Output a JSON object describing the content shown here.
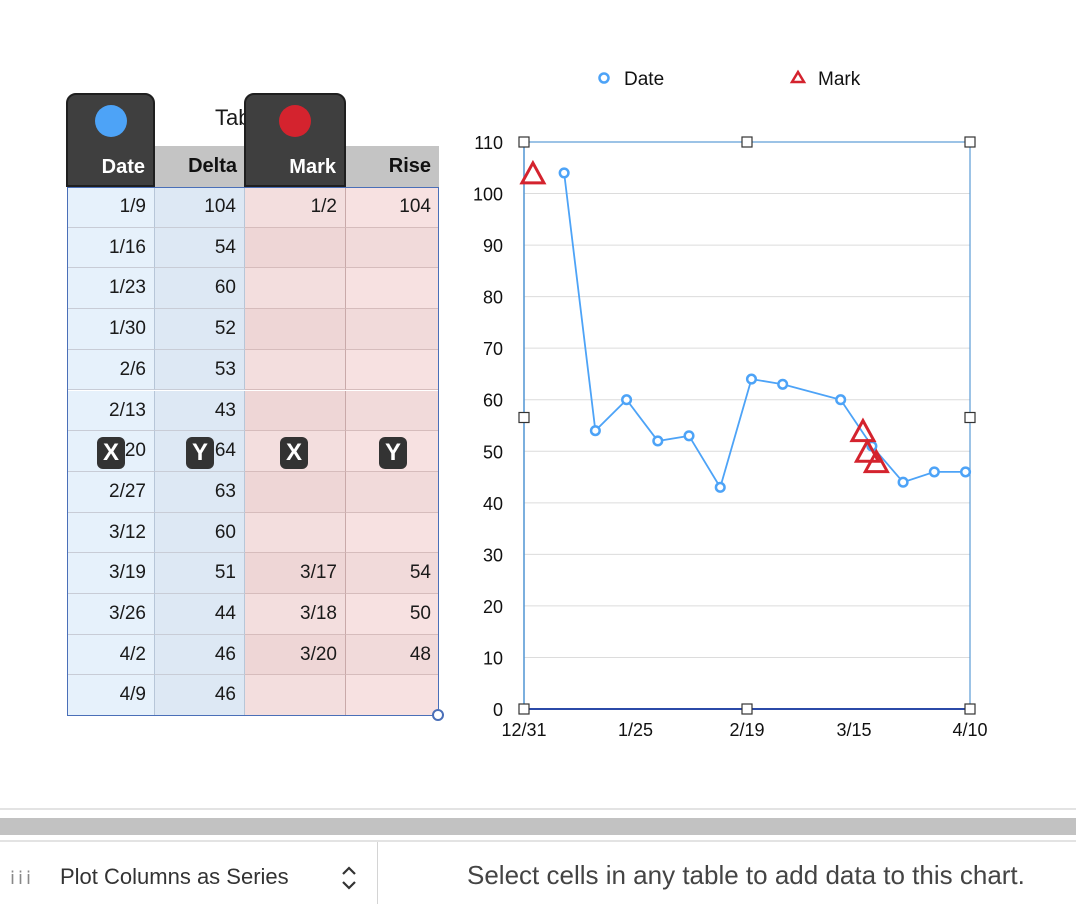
{
  "table": {
    "title": "Table",
    "headers": [
      "Date",
      "Delta",
      "Mark",
      "Rise"
    ],
    "rows": [
      [
        "1/9",
        "104",
        "1/2",
        "104"
      ],
      [
        "1/16",
        "54",
        "",
        ""
      ],
      [
        "1/23",
        "60",
        "",
        ""
      ],
      [
        "1/30",
        "52",
        "",
        ""
      ],
      [
        "2/6",
        "53",
        "",
        ""
      ],
      [
        "2/13",
        "43",
        "",
        ""
      ],
      [
        "2/20",
        "64",
        "",
        ""
      ],
      [
        "2/27",
        "63",
        "",
        ""
      ],
      [
        "3/12",
        "60",
        "",
        ""
      ],
      [
        "3/19",
        "51",
        "3/17",
        "54"
      ],
      [
        "3/26",
        "44",
        "3/18",
        "50"
      ],
      [
        "4/2",
        "46",
        "3/20",
        "48"
      ],
      [
        "4/9",
        "46",
        "",
        ""
      ]
    ],
    "badges": {
      "x_label": "X",
      "y_label": "Y"
    },
    "series_colors": {
      "date": "#4da3f7",
      "mark": "#d4232e"
    }
  },
  "chart_data": {
    "type": "scatter",
    "title": "",
    "legend_position": "top",
    "x_ticks": [
      "12/31",
      "1/25",
      "2/19",
      "3/15",
      "4/10"
    ],
    "y_ticks": [
      "0",
      "10",
      "20",
      "30",
      "40",
      "50",
      "60",
      "70",
      "80",
      "90",
      "100",
      "110"
    ],
    "ylim": [
      0,
      110
    ],
    "xlim": [
      "12/31",
      "4/10"
    ],
    "grid": true,
    "series": [
      {
        "name": "Date",
        "marker": "circle",
        "connected": true,
        "color": "#4da3f7",
        "x": [
          "1/9",
          "1/16",
          "1/23",
          "1/30",
          "2/6",
          "2/13",
          "2/20",
          "2/27",
          "3/12",
          "3/19",
          "3/26",
          "4/2",
          "4/9"
        ],
        "y": [
          104,
          54,
          60,
          52,
          53,
          43,
          64,
          63,
          60,
          51,
          44,
          46,
          46
        ]
      },
      {
        "name": "Mark",
        "marker": "triangle",
        "connected": false,
        "color": "#d4232e",
        "x": [
          "1/2",
          "3/17",
          "3/18",
          "3/20"
        ],
        "y": [
          104,
          54,
          50,
          48
        ]
      }
    ]
  },
  "bottom_bar": {
    "plot_mode": "Plot Columns as Series",
    "hint": "Select cells in any table to add data to this chart."
  }
}
